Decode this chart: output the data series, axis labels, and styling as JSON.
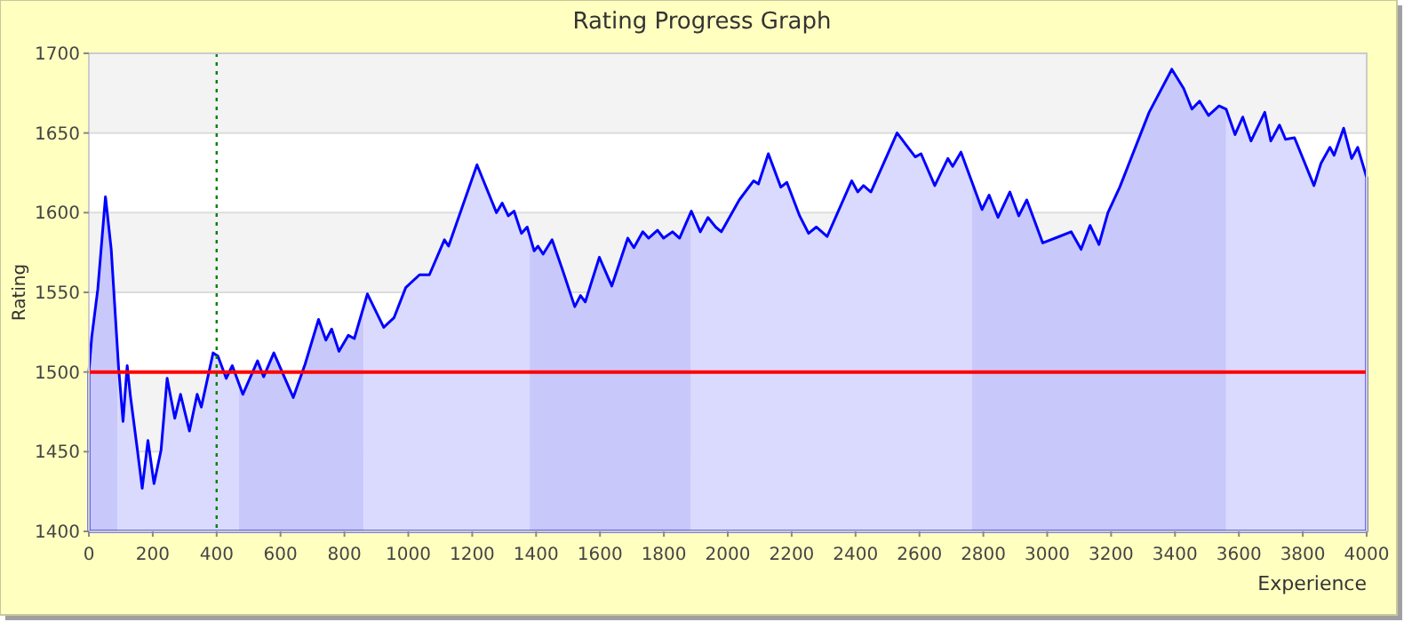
{
  "chart_data": {
    "type": "area",
    "title": "Rating Progress Graph",
    "xlabel": "Experience",
    "ylabel": "Rating",
    "x": [
      0,
      9,
      28,
      52,
      70,
      93,
      107,
      120,
      130,
      152,
      167,
      185,
      204,
      226,
      245,
      269,
      287,
      315,
      339,
      352,
      389,
      404,
      430,
      449,
      482,
      528,
      547,
      579,
      640,
      677,
      719,
      742,
      760,
      783,
      812,
      831,
      872,
      923,
      955,
      992,
      1035,
      1066,
      1113,
      1126,
      1215,
      1276,
      1294,
      1313,
      1331,
      1354,
      1372,
      1394,
      1406,
      1422,
      1450,
      1483,
      1521,
      1539,
      1554,
      1598,
      1637,
      1687,
      1706,
      1734,
      1752,
      1780,
      1799,
      1827,
      1849,
      1886,
      1914,
      1938,
      1962,
      1980,
      2036,
      2081,
      2096,
      2127,
      2166,
      2185,
      2225,
      2253,
      2277,
      2311,
      2388,
      2407,
      2425,
      2448,
      2530,
      2587,
      2605,
      2648,
      2689,
      2704,
      2730,
      2796,
      2818,
      2846,
      2883,
      2911,
      2936,
      2986,
      3037,
      3075,
      3106,
      3134,
      3162,
      3190,
      3227,
      3319,
      3390,
      3427,
      3453,
      3477,
      3505,
      3538,
      3560,
      3588,
      3612,
      3638,
      3681,
      3700,
      3727,
      3746,
      3774,
      3835,
      3857,
      3885,
      3898,
      3928,
      3953,
      3972,
      4000
    ],
    "values": [
      1500,
      1522,
      1552,
      1610,
      1577,
      1503,
      1469,
      1504,
      1485,
      1451,
      1427,
      1457,
      1430,
      1451,
      1496,
      1471,
      1486,
      1463,
      1486,
      1478,
      1512,
      1510,
      1496,
      1504,
      1486,
      1507,
      1497,
      1512,
      1484,
      1505,
      1533,
      1520,
      1527,
      1513,
      1523,
      1521,
      1549,
      1528,
      1534,
      1553,
      1561,
      1561,
      1583,
      1579,
      1630,
      1600,
      1606,
      1598,
      1601,
      1587,
      1591,
      1576,
      1579,
      1574,
      1583,
      1564,
      1541,
      1548,
      1544,
      1572,
      1554,
      1584,
      1578,
      1588,
      1584,
      1589,
      1584,
      1588,
      1584,
      1601,
      1588,
      1597,
      1591,
      1588,
      1608,
      1620,
      1618,
      1637,
      1616,
      1619,
      1598,
      1587,
      1591,
      1585,
      1620,
      1613,
      1617,
      1613,
      1650,
      1635,
      1637,
      1617,
      1634,
      1629,
      1638,
      1602,
      1611,
      1597,
      1613,
      1598,
      1608,
      1581,
      1585,
      1588,
      1577,
      1592,
      1580,
      1600,
      1616,
      1663,
      1690,
      1678,
      1665,
      1670,
      1661,
      1667,
      1665,
      1649,
      1660,
      1645,
      1663,
      1645,
      1655,
      1646,
      1647,
      1617,
      1631,
      1641,
      1636,
      1653,
      1634,
      1641,
      1622
    ],
    "color": "#0000ff",
    "xlim": [
      0,
      4000
    ],
    "ylim": [
      1400,
      1700
    ],
    "xticks": [
      0,
      200,
      400,
      600,
      800,
      1000,
      1200,
      1400,
      1600,
      1800,
      2000,
      2200,
      2400,
      2600,
      2800,
      3000,
      3200,
      3400,
      3600,
      3800,
      4000
    ],
    "yticks": [
      1400,
      1450,
      1500,
      1550,
      1600,
      1650,
      1700
    ],
    "grid": "y",
    "ref_lines": [
      {
        "axis": "y",
        "value": 1500,
        "color": "#ff0000",
        "line_style": "solid"
      },
      {
        "axis": "x",
        "value": 400,
        "color": "#008000",
        "line_style": "dotted"
      }
    ],
    "bands": [
      {
        "axis": "x",
        "from": 0,
        "to": 90,
        "color": "#cfcffb"
      },
      {
        "axis": "x",
        "from": 90,
        "to": 470,
        "color": "#e2e2ff"
      },
      {
        "axis": "x",
        "from": 470,
        "to": 860,
        "color": "#cfcffb"
      },
      {
        "axis": "x",
        "from": 860,
        "to": 1380,
        "color": "#e2e2ff"
      },
      {
        "axis": "x",
        "from": 1380,
        "to": 1885,
        "color": "#cfcffb"
      },
      {
        "axis": "x",
        "from": 1885,
        "to": 2765,
        "color": "#e2e2ff"
      },
      {
        "axis": "x",
        "from": 2765,
        "to": 3560,
        "color": "#cfcffb"
      },
      {
        "axis": "x",
        "from": 3560,
        "to": 4000,
        "color": "#e2e2ff"
      }
    ]
  }
}
